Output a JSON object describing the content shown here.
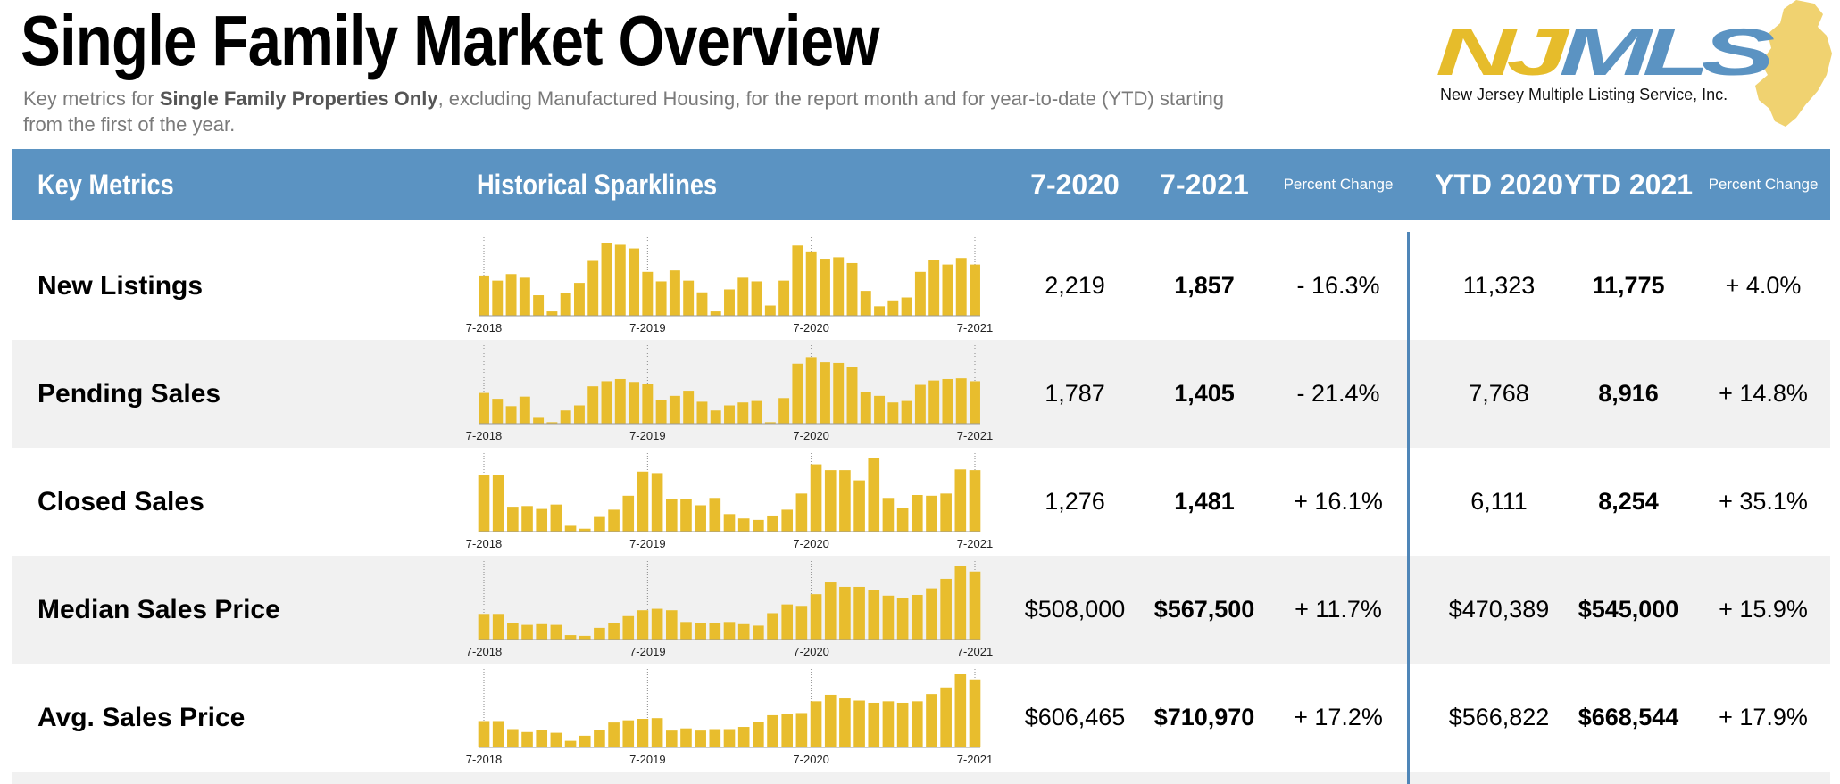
{
  "header": {
    "title": "Single Family Market Overview",
    "subtitle_parts": [
      "Key metrics for ",
      "Single Family Properties Only",
      ", excluding Manufactured Housing, for the report month and for year-to-date (YTD) starting from the first of the year."
    ]
  },
  "logo": {
    "text": "NJMLS",
    "caption": "New Jersey Multiple Listing Service, Inc.",
    "colors": {
      "yellow": "#e6bc2b",
      "blue": "#5b93c2",
      "state": "#f0d270"
    }
  },
  "columns": {
    "key_metrics": "Key Metrics",
    "sparklines": "Historical Sparklines",
    "month_prev": "7-2020",
    "month_curr": "7-2021",
    "pct_change": "Percent Change",
    "ytd_prev": "YTD 2020",
    "ytd_curr": "YTD 2021",
    "ytd_pct_change": "Percent Change"
  },
  "colors": {
    "header_bg": "#5b93c2",
    "bar": "#e8bd2d",
    "row_alt": "#f1f1f1",
    "divider": "#4f86b8"
  },
  "chart_data": [
    {
      "type": "bar",
      "title": "New Listings",
      "tick_labels": [
        "7-2018",
        "7-2019",
        "7-2020",
        "7-2021"
      ],
      "values": [
        55,
        48,
        57,
        52,
        28,
        6,
        31,
        45,
        75,
        100,
        97,
        92,
        60,
        47,
        62,
        48,
        32,
        6,
        36,
        52,
        47,
        14,
        48,
        96,
        88,
        78,
        80,
        72,
        34,
        13,
        21,
        25,
        60,
        76,
        70,
        79,
        70
      ],
      "ylim": [
        0,
        100
      ]
    },
    {
      "type": "bar",
      "title": "Pending Sales",
      "tick_labels": [
        "7-2018",
        "7-2019",
        "7-2020",
        "7-2021"
      ],
      "values": [
        42,
        34,
        24,
        37,
        8,
        2,
        18,
        25,
        51,
        58,
        61,
        57,
        54,
        32,
        38,
        45,
        30,
        18,
        25,
        29,
        31,
        2,
        35,
        82,
        91,
        84,
        83,
        78,
        43,
        38,
        29,
        31,
        53,
        59,
        61,
        62,
        58
      ],
      "ylim": [
        0,
        100
      ]
    },
    {
      "type": "bar",
      "title": "Closed Sales",
      "tick_labels": [
        "7-2018",
        "7-2019",
        "7-2020",
        "7-2021"
      ],
      "values": [
        78,
        78,
        34,
        35,
        31,
        37,
        8,
        4,
        20,
        30,
        49,
        82,
        80,
        44,
        44,
        36,
        46,
        24,
        18,
        16,
        22,
        30,
        52,
        92,
        84,
        84,
        70,
        100,
        46,
        32,
        50,
        49,
        52,
        85,
        84
      ],
      "ylim": [
        0,
        100
      ]
    },
    {
      "type": "bar",
      "title": "Median Sales Price",
      "tick_labels": [
        "7-2018",
        "7-2019",
        "7-2020",
        "7-2021"
      ],
      "values": [
        35,
        35,
        22,
        20,
        21,
        20,
        6,
        5,
        16,
        23,
        32,
        40,
        42,
        40,
        24,
        22,
        22,
        24,
        21,
        19,
        36,
        48,
        46,
        62,
        78,
        72,
        72,
        68,
        60,
        57,
        61,
        70,
        83,
        100,
        93
      ],
      "ylim": [
        0,
        100
      ]
    },
    {
      "type": "bar",
      "title": "Avg. Sales Price",
      "tick_labels": [
        "7-2018",
        "7-2019",
        "7-2020",
        "7-2021"
      ],
      "values": [
        36,
        36,
        25,
        21,
        24,
        20,
        9,
        16,
        24,
        34,
        37,
        39,
        40,
        23,
        26,
        23,
        25,
        25,
        28,
        35,
        44,
        46,
        47,
        63,
        72,
        67,
        64,
        61,
        63,
        61,
        63,
        73,
        82,
        100,
        93
      ],
      "ylim": [
        0,
        100
      ]
    }
  ],
  "rows": [
    {
      "metric": "New Listings",
      "prev": "2,219",
      "curr": "1,857",
      "pct": "- 16.3%",
      "ytd_prev": "11,323",
      "ytd_curr": "11,775",
      "ytd_pct": "+ 4.0%"
    },
    {
      "metric": "Pending Sales",
      "prev": "1,787",
      "curr": "1,405",
      "pct": "- 21.4%",
      "ytd_prev": "7,768",
      "ytd_curr": "8,916",
      "ytd_pct": "+ 14.8%"
    },
    {
      "metric": "Closed Sales",
      "prev": "1,276",
      "curr": "1,481",
      "pct": "+ 16.1%",
      "ytd_prev": "6,111",
      "ytd_curr": "8,254",
      "ytd_pct": "+ 35.1%"
    },
    {
      "metric": "Median Sales Price",
      "prev": "$508,000",
      "curr": "$567,500",
      "pct": "+ 11.7%",
      "ytd_prev": "$470,389",
      "ytd_curr": "$545,000",
      "ytd_pct": "+ 15.9%"
    },
    {
      "metric": "Avg. Sales Price",
      "prev": "$606,465",
      "curr": "$710,970",
      "pct": "+ 17.2%",
      "ytd_prev": "$566,822",
      "ytd_curr": "$668,544",
      "ytd_pct": "+ 17.9%"
    }
  ]
}
